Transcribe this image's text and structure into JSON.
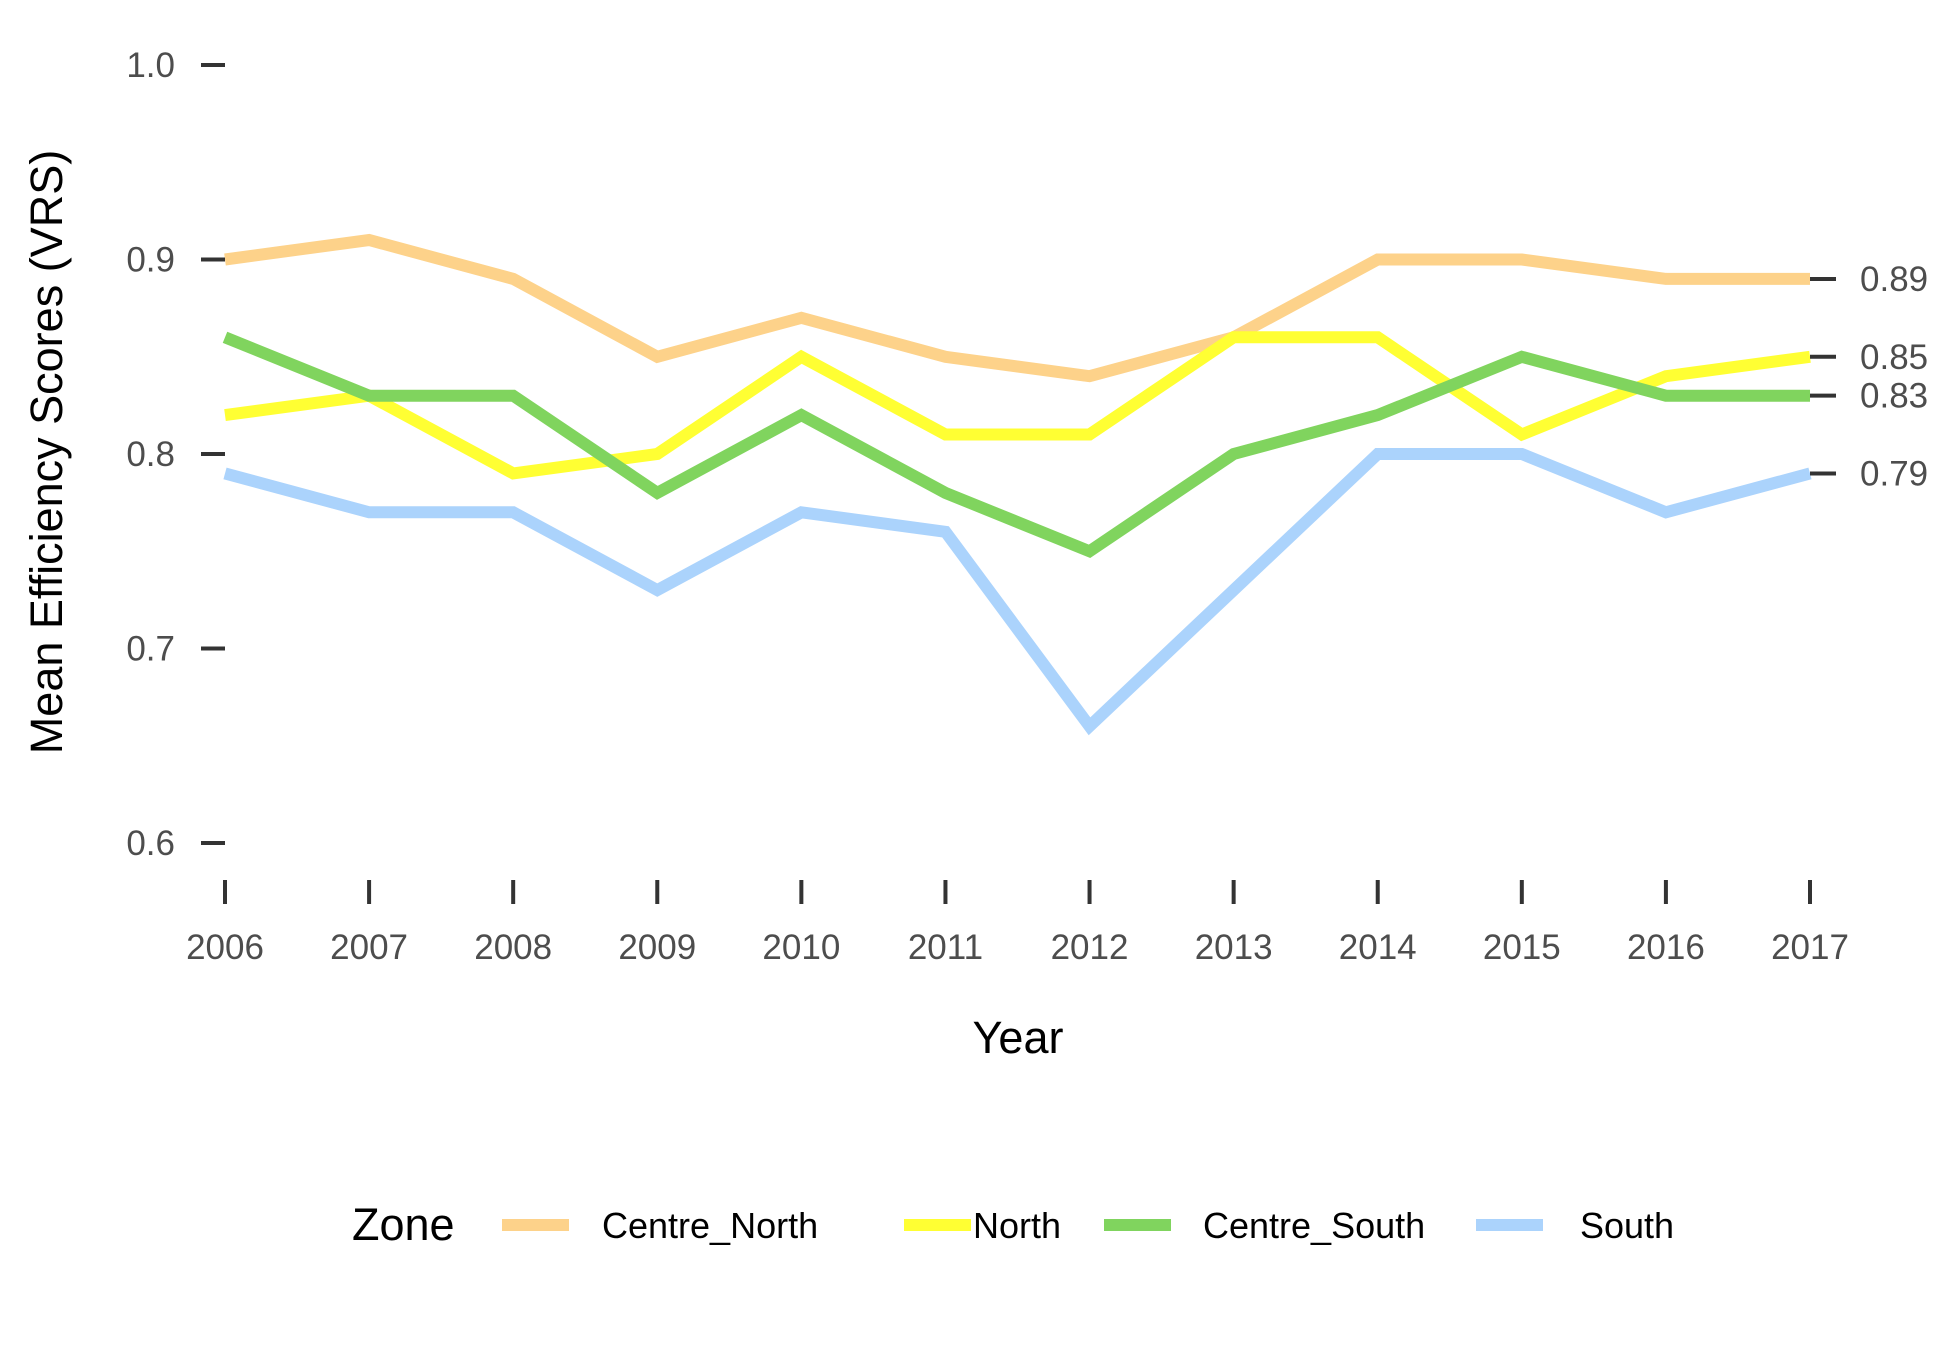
{
  "chart_data": {
    "type": "line",
    "title": "",
    "xlabel": "Year",
    "ylabel": "Mean Efficiency Scores (VRS)",
    "x": [
      2006,
      2007,
      2008,
      2009,
      2010,
      2011,
      2012,
      2013,
      2014,
      2015,
      2016,
      2017
    ],
    "xticks": [
      "2006",
      "2007",
      "2008",
      "2009",
      "2010",
      "2011",
      "2012",
      "2013",
      "2014",
      "2015",
      "2016",
      "2017"
    ],
    "ylim": [
      0.6,
      1.0
    ],
    "yticks": [
      "0.6",
      "0.7",
      "0.8",
      "0.9",
      "1.0"
    ],
    "grid": false,
    "legend": {
      "title": "Zone",
      "position": "bottom"
    },
    "end_labels": [
      "0.89",
      "0.85",
      "0.83",
      "0.79"
    ],
    "series": [
      {
        "name": "Centre_North",
        "color": "#FDD28A",
        "values": [
          0.9,
          0.91,
          0.89,
          0.85,
          0.87,
          0.85,
          0.84,
          0.86,
          0.9,
          0.9,
          0.89,
          0.89
        ]
      },
      {
        "name": "North",
        "color": "#FFFF33",
        "values": [
          0.82,
          0.83,
          0.79,
          0.8,
          0.85,
          0.81,
          0.81,
          0.86,
          0.86,
          0.81,
          0.84,
          0.85
        ]
      },
      {
        "name": "Centre_South",
        "color": "#80D45E",
        "values": [
          0.86,
          0.83,
          0.83,
          0.78,
          0.82,
          0.78,
          0.75,
          0.8,
          0.82,
          0.85,
          0.83,
          0.83
        ]
      },
      {
        "name": "South",
        "color": "#ABD3FC",
        "values": [
          0.79,
          0.77,
          0.77,
          0.73,
          0.77,
          0.76,
          0.66,
          0.73,
          0.8,
          0.8,
          0.77,
          0.79
        ]
      }
    ]
  }
}
